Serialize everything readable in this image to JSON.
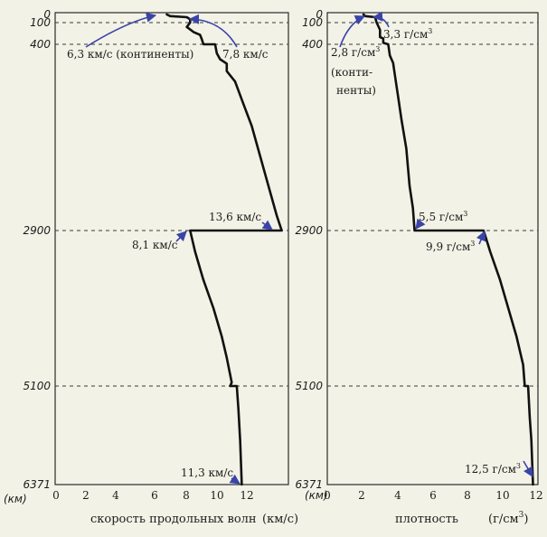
{
  "chart_data": [
    {
      "type": "line",
      "xlabel": "скорость продольных волн",
      "xunit": "(км/с)",
      "xlim": [
        0,
        14
      ],
      "x_ticks": [
        "0",
        "2",
        "4",
        "6",
        "8",
        "10",
        "12"
      ],
      "y_ticks": [
        "0",
        "100",
        "400",
        "2900",
        "5100",
        "6371"
      ],
      "y_unit": "(км)",
      "ylim": [
        0,
        6371
      ],
      "reference_depths": [
        100,
        400,
        2900,
        5100
      ],
      "series": [
        {
          "points": [
            [
              6.7,
              0
            ],
            [
              6.9,
              20
            ],
            [
              7.9,
              33
            ],
            [
              8.1,
              60
            ],
            [
              8.1,
              100
            ],
            [
              7.9,
              160
            ],
            [
              8.3,
              230
            ],
            [
              8.7,
              270
            ],
            [
              8.8,
              330
            ],
            [
              8.9,
              400
            ],
            [
              9.6,
              400
            ],
            [
              9.7,
              520
            ],
            [
              9.9,
              600
            ],
            [
              10.3,
              660
            ],
            [
              10.3,
              760
            ],
            [
              10.8,
              900
            ],
            [
              11.3,
              1200
            ],
            [
              11.8,
              1500
            ],
            [
              12.3,
              1900
            ],
            [
              12.8,
              2300
            ],
            [
              13.3,
              2700
            ],
            [
              13.6,
              2900
            ],
            [
              8.1,
              2900
            ],
            [
              8.4,
              3200
            ],
            [
              8.9,
              3600
            ],
            [
              9.5,
              4000
            ],
            [
              10.0,
              4400
            ],
            [
              10.3,
              4700
            ],
            [
              10.6,
              5050
            ],
            [
              10.5,
              5100
            ],
            [
              10.9,
              5100
            ],
            [
              11.0,
              5400
            ],
            [
              11.1,
              5800
            ],
            [
              11.2,
              6371
            ]
          ]
        }
      ],
      "annotations": [
        "6,3 км/с (континенты)",
        "7,8 км/с",
        "13,6 км/с",
        "8,1 км/с",
        "11,3 км/с"
      ]
    },
    {
      "type": "line",
      "xlabel": "плотность",
      "xunit": "(г/см",
      "xunit_sup": "3",
      "xunit_close": ")",
      "xlim": [
        0,
        12.8
      ],
      "x_ticks": [
        "0",
        "2",
        "4",
        "6",
        "8",
        "10",
        "12"
      ],
      "y_ticks": [
        "0",
        "100",
        "400",
        "2900",
        "5100",
        "6371"
      ],
      "y_unit": "(км)",
      "ylim": [
        0,
        6371
      ],
      "reference_depths": [
        100,
        400,
        2900,
        5100
      ],
      "series": [
        {
          "points": [
            [
              2.2,
              0
            ],
            [
              2.3,
              20
            ],
            [
              2.9,
              33
            ],
            [
              3.0,
              100
            ],
            [
              3.2,
              200
            ],
            [
              3.2,
              300
            ],
            [
              3.4,
              320
            ],
            [
              3.4,
              380
            ],
            [
              3.7,
              400
            ],
            [
              3.8,
              550
            ],
            [
              4.0,
              650
            ],
            [
              4.1,
              800
            ],
            [
              4.3,
              1100
            ],
            [
              4.5,
              1400
            ],
            [
              4.8,
              1800
            ],
            [
              5.0,
              2300
            ],
            [
              5.2,
              2600
            ],
            [
              5.3,
              2900
            ],
            [
              9.5,
              2900
            ],
            [
              9.9,
              3200
            ],
            [
              10.5,
              3600
            ],
            [
              11.0,
              4000
            ],
            [
              11.5,
              4400
            ],
            [
              11.9,
              4800
            ],
            [
              12.0,
              5100
            ],
            [
              12.2,
              5100
            ],
            [
              12.3,
              5500
            ],
            [
              12.4,
              5800
            ],
            [
              12.5,
              6371
            ]
          ]
        }
      ],
      "annotations": [
        {
          "text": "3,3 г/см",
          "sup": "3"
        },
        {
          "text": "2,8 г/см",
          "sup": "3",
          "lines": [
            "(конти-",
            "ненты)"
          ]
        },
        {
          "text": "5,5 г/см",
          "sup": "3"
        },
        {
          "text": "9,9 г/см",
          "sup": "3"
        },
        {
          "text": "12,5 г/см",
          "sup": "3"
        }
      ]
    }
  ]
}
